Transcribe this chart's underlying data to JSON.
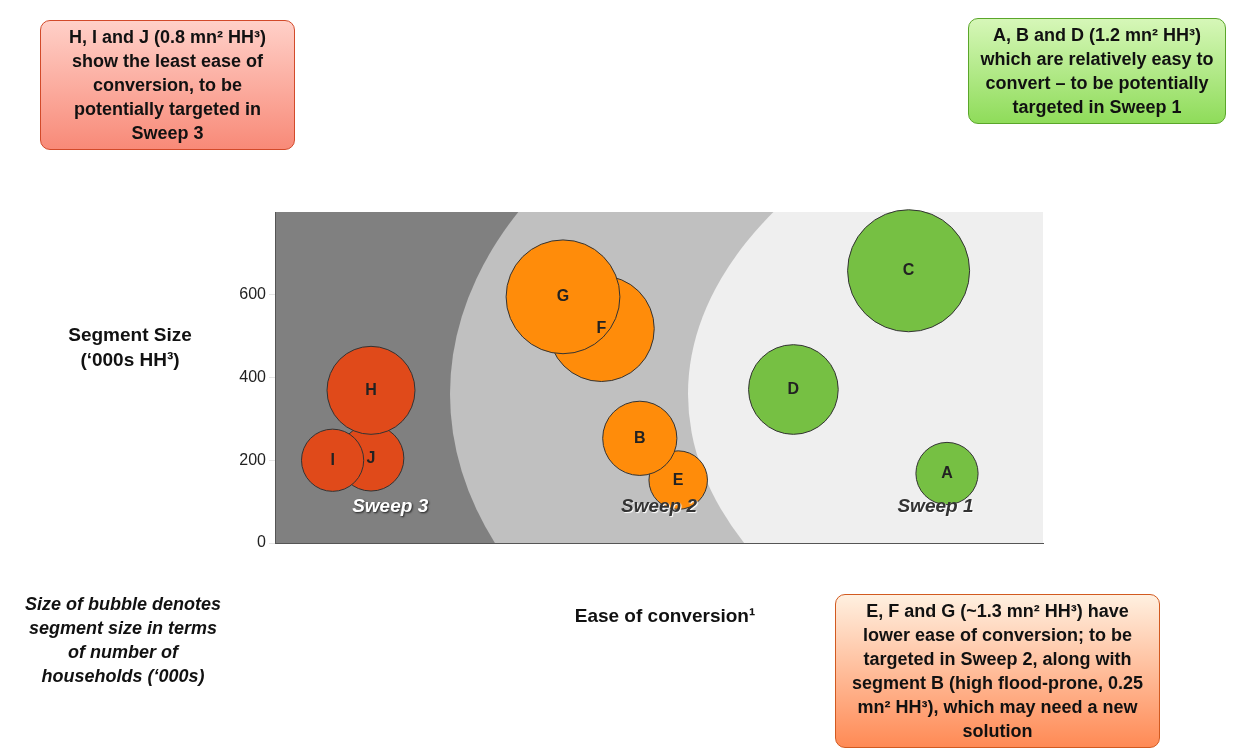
{
  "chart_data": {
    "type": "bubble",
    "ylabel": "Segment Size (‘000s HH³)",
    "xlabel": "Ease of conversion¹",
    "ylim": [
      0,
      800
    ],
    "yticks": [
      0,
      200,
      400,
      600
    ],
    "tick_labels": "y",
    "grid": false,
    "legend": false,
    "categories": [
      null,
      null,
      null,
      null,
      null,
      null,
      null,
      null,
      null,
      null,
      null,
      null,
      null,
      null,
      null,
      null,
      null,
      null,
      null,
      null
    ],
    "series": [
      {
        "name": "H",
        "color": "#e04a1a",
        "values": [
          null,
          null,
          369,
          null,
          null,
          null,
          null,
          null,
          null,
          null,
          null,
          null,
          null,
          null,
          null,
          null,
          null,
          null,
          null,
          null
        ],
        "sizes": [
          null,
          null,
          0.52,
          null,
          null,
          null,
          null,
          null,
          null,
          null,
          null,
          null,
          null,
          null,
          null,
          null,
          null,
          null,
          null,
          null
        ]
      },
      {
        "name": "I",
        "color": "#e04a1a",
        "values": [
          null,
          200,
          null,
          null,
          null,
          null,
          null,
          null,
          null,
          null,
          null,
          null,
          null,
          null,
          null,
          null,
          null,
          null,
          null,
          null
        ],
        "sizes": [
          null,
          0.26,
          null,
          null,
          null,
          null,
          null,
          null,
          null,
          null,
          null,
          null,
          null,
          null,
          null,
          null,
          null,
          null,
          null,
          null
        ]
      },
      {
        "name": "J",
        "color": "#e04a1a",
        "values": [
          null,
          null,
          205,
          null,
          null,
          null,
          null,
          null,
          null,
          null,
          null,
          null,
          null,
          null,
          null,
          null,
          null,
          null,
          null,
          null
        ],
        "sizes": [
          null,
          null,
          0.29,
          null,
          null,
          null,
          null,
          null,
          null,
          null,
          null,
          null,
          null,
          null,
          null,
          null,
          null,
          null,
          null,
          null
        ]
      },
      {
        "name": "G",
        "color": "#ff8c0a",
        "values": [
          null,
          null,
          null,
          null,
          null,
          null,
          null,
          595,
          null,
          null,
          null,
          null,
          null,
          null,
          null,
          null,
          null,
          null,
          null,
          null
        ],
        "sizes": [
          null,
          null,
          null,
          null,
          null,
          null,
          null,
          0.87,
          null,
          null,
          null,
          null,
          null,
          null,
          null,
          null,
          null,
          null,
          null,
          null
        ]
      },
      {
        "name": "F",
        "color": "#ff8c0a",
        "values": [
          null,
          null,
          null,
          null,
          null,
          null,
          null,
          null,
          518,
          null,
          null,
          null,
          null,
          null,
          null,
          null,
          null,
          null,
          null,
          null
        ],
        "sizes": [
          null,
          null,
          null,
          null,
          null,
          null,
          null,
          null,
          0.75,
          null,
          null,
          null,
          null,
          null,
          null,
          null,
          null,
          null,
          null,
          null
        ]
      },
      {
        "name": "B",
        "color": "#ff8c0a",
        "values": [
          null,
          null,
          null,
          null,
          null,
          null,
          null,
          null,
          null,
          253,
          null,
          null,
          null,
          null,
          null,
          null,
          null,
          null,
          null,
          null
        ],
        "sizes": [
          null,
          null,
          null,
          null,
          null,
          null,
          null,
          null,
          null,
          0.37,
          null,
          null,
          null,
          null,
          null,
          null,
          null,
          null,
          null,
          null
        ]
      },
      {
        "name": "E",
        "color": "#ff8c0a",
        "values": [
          null,
          null,
          null,
          null,
          null,
          null,
          null,
          null,
          null,
          null,
          152,
          null,
          null,
          null,
          null,
          null,
          null,
          null,
          null,
          null
        ],
        "sizes": [
          null,
          null,
          null,
          null,
          null,
          null,
          null,
          null,
          null,
          null,
          0.23,
          null,
          null,
          null,
          null,
          null,
          null,
          null,
          null,
          null
        ]
      },
      {
        "name": "C",
        "color": "#76c043",
        "values": [
          null,
          null,
          null,
          null,
          null,
          null,
          null,
          null,
          null,
          null,
          null,
          null,
          null,
          null,
          null,
          null,
          658,
          null,
          null,
          null
        ],
        "sizes": [
          null,
          null,
          null,
          null,
          null,
          null,
          null,
          null,
          null,
          null,
          null,
          null,
          null,
          null,
          null,
          null,
          1,
          null,
          null,
          null
        ]
      },
      {
        "name": "D",
        "color": "#76c043",
        "values": [
          null,
          null,
          null,
          null,
          null,
          null,
          null,
          null,
          null,
          null,
          null,
          null,
          null,
          371,
          null,
          null,
          null,
          null,
          null,
          null
        ],
        "sizes": [
          null,
          null,
          null,
          null,
          null,
          null,
          null,
          null,
          null,
          null,
          null,
          null,
          null,
          0.54,
          null,
          null,
          null,
          null,
          null,
          null
        ]
      },
      {
        "name": "A",
        "color": "#76c043",
        "values": [
          null,
          null,
          null,
          null,
          null,
          null,
          null,
          null,
          null,
          null,
          null,
          null,
          null,
          null,
          null,
          null,
          null,
          168,
          null,
          null
        ],
        "sizes": [
          null,
          null,
          null,
          null,
          null,
          null,
          null,
          null,
          null,
          null,
          null,
          null,
          null,
          null,
          null,
          null,
          null,
          0.26,
          null,
          null
        ]
      }
    ],
    "annotations": [
      "H, I and J (0.8 mn² HH³) show the least ease of conversion, to be potentially targeted in Sweep 3",
      "A, B and D (1.2 mn² HH³) which are relatively easy to convert – to be potentially targeted in Sweep 1",
      "E, F and G (~1.3 mn² HH³) have lower ease of conversion; to be targeted in Sweep 2, along with segment B (high flood-prone, 0.25 mn² HH³), which may need a new solution",
      "Size of bubble denotes segment size in terms of number of households (‘000s)",
      "Sweep 3",
      "Sweep 2",
      "Sweep 1"
    ]
  }
}
